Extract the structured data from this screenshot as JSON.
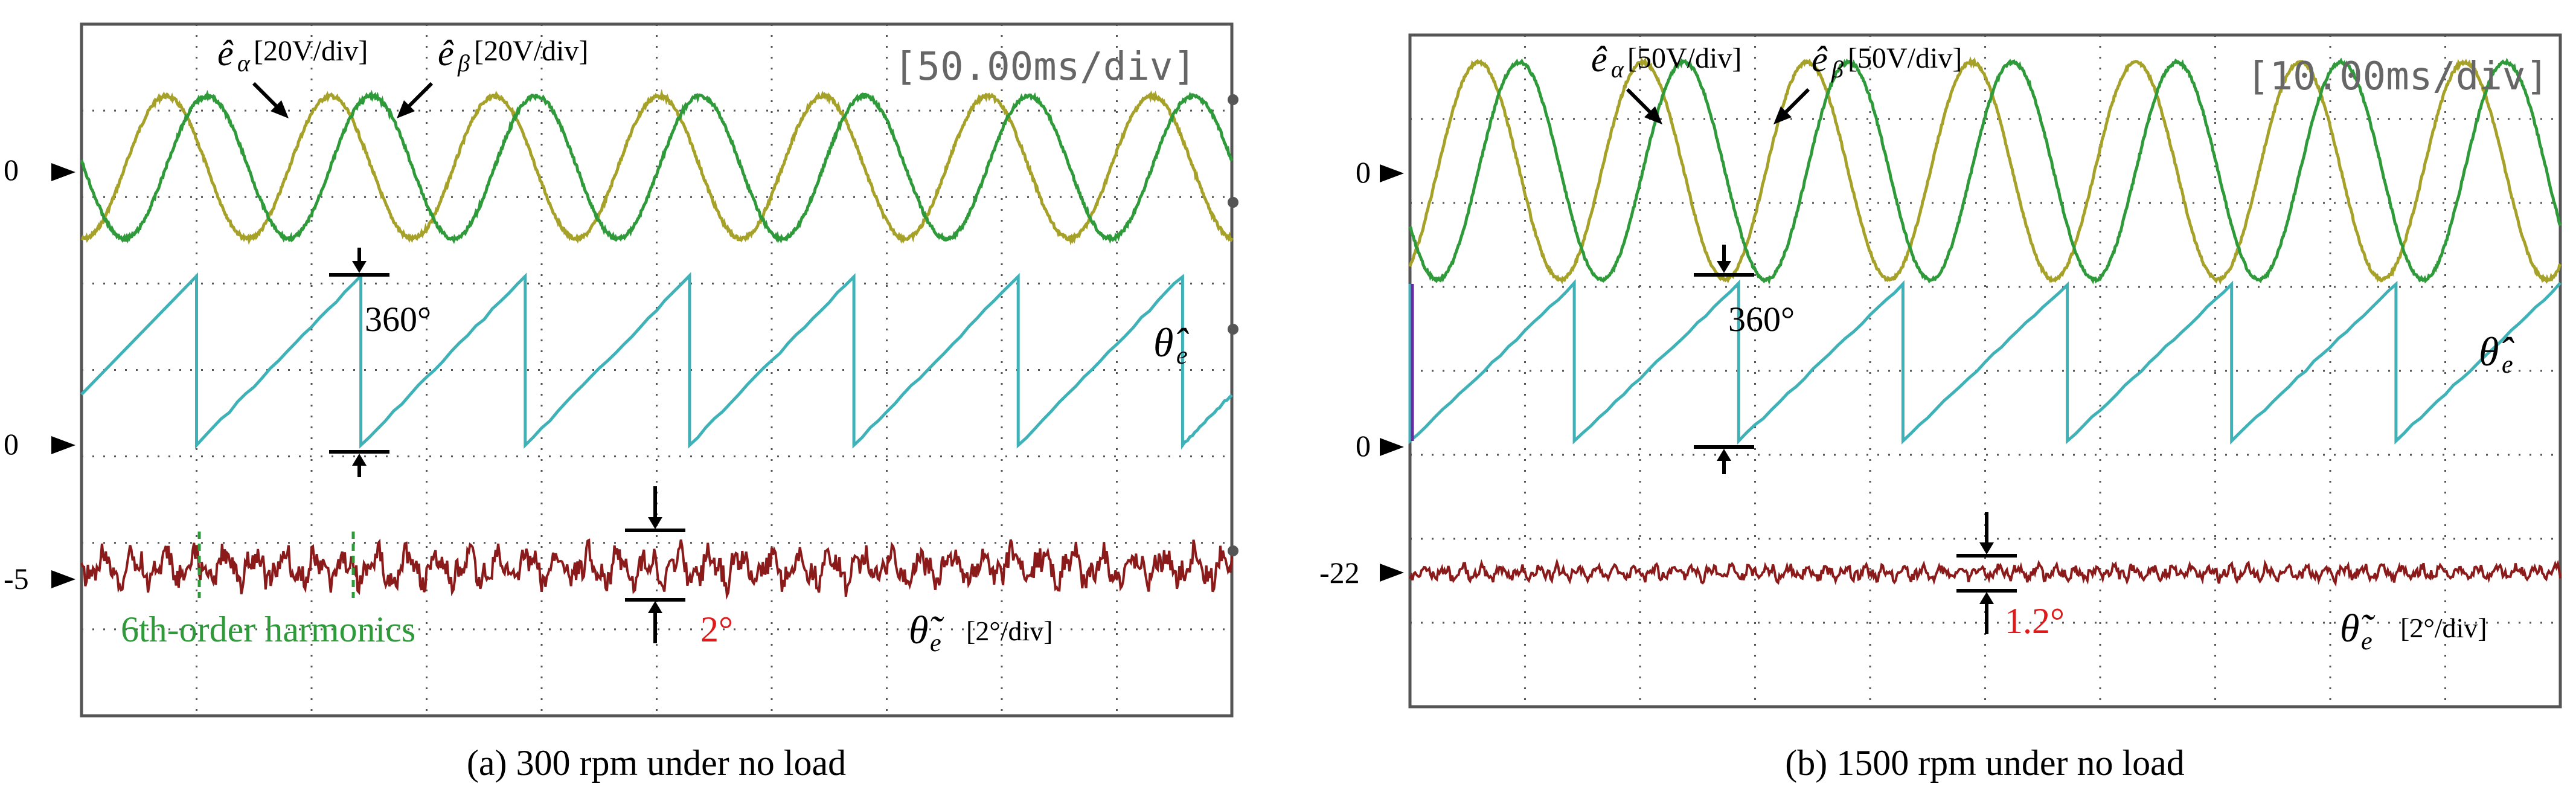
{
  "figure": {
    "panels": [
      {
        "id": "a",
        "caption_label": "(a)",
        "caption_letter": "a",
        "caption_text": "300 rpm under no load",
        "timebase": "[50.00ms/div]",
        "ealpha_label": "ê",
        "ealpha_sub": "α",
        "ealpha_scale": "[20V/div]",
        "ebeta_label": "ê",
        "ebeta_sub": "β",
        "ebeta_scale": "[20V/div]",
        "theta_hat_label": "θ̂",
        "theta_hat_sub": "e",
        "theta_tilde_label": "θ̃",
        "theta_tilde_sub": "e",
        "theta_tilde_scale": "[2°/div]",
        "angle_span_label": "360°",
        "error_span_label": "2°",
        "harmonics_label": "6th-order harmonics",
        "marker_emf": "0",
        "marker_theta": "0",
        "marker_error": "-5"
      },
      {
        "id": "b",
        "caption_label": "(b)",
        "caption_letter": "b",
        "caption_text": "1500 rpm under no load",
        "timebase": "[10.00ms/div]",
        "ealpha_label": "ê",
        "ealpha_sub": "α",
        "ealpha_scale": "[50V/div]",
        "ebeta_label": "ê",
        "ebeta_sub": "β",
        "ebeta_scale": "[50V/div]",
        "theta_hat_label": "θ̂",
        "theta_hat_sub": "e",
        "theta_tilde_label": "θ̃",
        "theta_tilde_sub": "e",
        "theta_tilde_scale": "[2°/div]",
        "angle_span_label": "360°",
        "error_span_label": "1.2°",
        "marker_emf": "0",
        "marker_theta": "0",
        "marker_error": "-22"
      }
    ],
    "colors": {
      "ealpha": "#a6a129",
      "ebeta": "#2f9a3a",
      "theta_hat": "#3fb2b8",
      "theta_hat_edge": "#6a2aa0",
      "theta_error": "#8b1a1a",
      "annotation_red": "#e0191b",
      "harmonics_green": "#2f9a3a",
      "grid": "#555555",
      "frame": "#555555"
    }
  },
  "chart_data": [
    {
      "type": "line",
      "title": "(a) 300 rpm under no load",
      "timebase": "50.00ms/div",
      "divisions_x": 10,
      "series": [
        {
          "name": "ê_α",
          "kind": "sine",
          "scale": "20V/div",
          "cycles_on_screen": 7.0,
          "amplitude_div": 0.95,
          "phase_deg": -95
        },
        {
          "name": "ê_β",
          "kind": "sine",
          "scale": "20V/div",
          "cycles_on_screen": 7.0,
          "amplitude_div": 0.95,
          "phase_deg": -185
        },
        {
          "name": "θ̂_e",
          "kind": "sawtooth",
          "range_deg": [
            0,
            360
          ],
          "cycles_on_screen": 7.0,
          "first_reset_at_div": 1.0
        },
        {
          "name": "θ̃_e",
          "kind": "ripple",
          "scale": "2°/div",
          "offset_marker": -5,
          "peak_to_peak_deg": 2,
          "dominant_harmonic": 6
        }
      ],
      "annotations": [
        "360°",
        "2°",
        "6th-order harmonics"
      ]
    },
    {
      "type": "line",
      "title": "(b) 1500 rpm under no load",
      "timebase": "10.00ms/div",
      "divisions_x": 10,
      "series": [
        {
          "name": "ê_α",
          "kind": "sine",
          "scale": "50V/div",
          "cycles_on_screen": 7.0,
          "amplitude_div": 1.4,
          "phase_deg": -60
        },
        {
          "name": "ê_β",
          "kind": "sine",
          "scale": "50V/div",
          "cycles_on_screen": 7.0,
          "amplitude_div": 1.4,
          "phase_deg": -150
        },
        {
          "name": "θ̂_e",
          "kind": "sawtooth",
          "range_deg": [
            0,
            360
          ],
          "cycles_on_screen": 7.0,
          "first_reset_at_div": 0.0
        },
        {
          "name": "θ̃_e",
          "kind": "ripple",
          "scale": "2°/div",
          "offset_marker": -22,
          "peak_to_peak_deg": 1.2,
          "dominant_harmonic": 6
        }
      ],
      "annotations": [
        "360°",
        "1.2°"
      ]
    }
  ]
}
